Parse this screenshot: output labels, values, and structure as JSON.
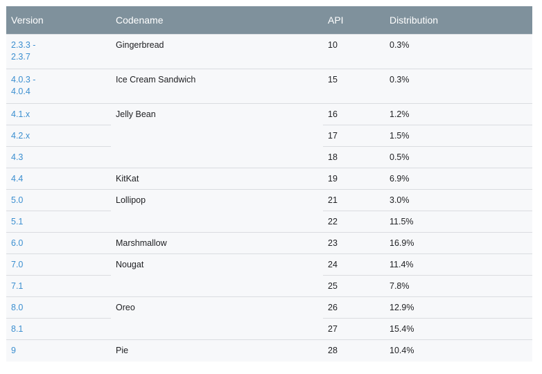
{
  "table": {
    "headers": {
      "version": "Version",
      "codename": "Codename",
      "api": "API",
      "distribution": "Distribution"
    },
    "rows": [
      {
        "version": "2.3.3 -\n2.3.7",
        "codename": "Gingerbread",
        "api": "10",
        "distribution": "0.3%"
      },
      {
        "version": "4.0.3 -\n4.0.4",
        "codename": "Ice Cream Sandwich",
        "api": "15",
        "distribution": "0.3%"
      },
      {
        "version": "4.1.x",
        "codename": "Jelly Bean",
        "api": "16",
        "distribution": "1.2%"
      },
      {
        "version": "4.2.x",
        "codename": "",
        "api": "17",
        "distribution": "1.5%"
      },
      {
        "version": "4.3",
        "codename": "",
        "api": "18",
        "distribution": "0.5%"
      },
      {
        "version": "4.4",
        "codename": "KitKat",
        "api": "19",
        "distribution": "6.9%"
      },
      {
        "version": "5.0",
        "codename": "Lollipop",
        "api": "21",
        "distribution": "3.0%"
      },
      {
        "version": "5.1",
        "codename": "",
        "api": "22",
        "distribution": "11.5%"
      },
      {
        "version": "6.0",
        "codename": "Marshmallow",
        "api": "23",
        "distribution": "16.9%"
      },
      {
        "version": "7.0",
        "codename": "Nougat",
        "api": "24",
        "distribution": "11.4%"
      },
      {
        "version": "7.1",
        "codename": "",
        "api": "25",
        "distribution": "7.8%"
      },
      {
        "version": "8.0",
        "codename": "Oreo",
        "api": "26",
        "distribution": "12.9%"
      },
      {
        "version": "8.1",
        "codename": "",
        "api": "27",
        "distribution": "15.4%"
      },
      {
        "version": "9",
        "codename": "Pie",
        "api": "28",
        "distribution": "10.4%"
      }
    ]
  },
  "colors": {
    "header_bg": "#7f919c",
    "header_text": "#ffffff",
    "row_bg": "#f7f8fa",
    "link": "#3c8fd0",
    "border": "#dadce0"
  }
}
